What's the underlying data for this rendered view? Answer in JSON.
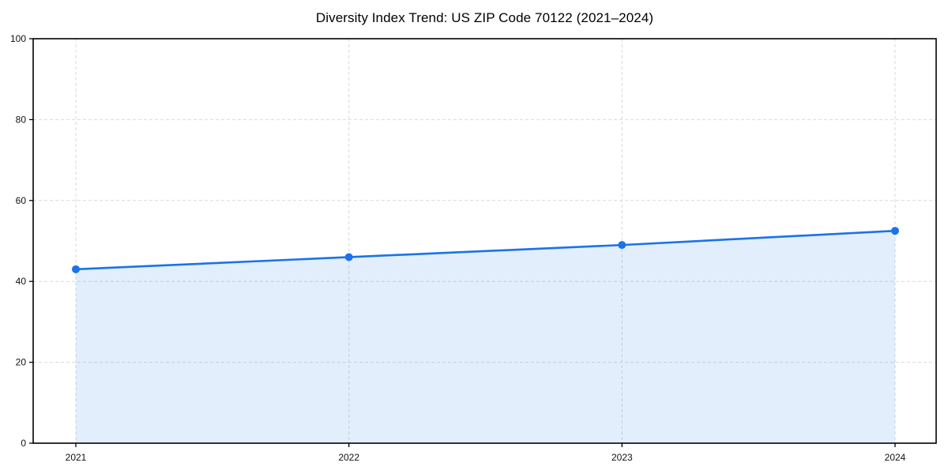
{
  "page": {
    "title": "Diversity Index Trend: US ZIP Code 70122 (2021–2024)"
  },
  "chart_data": {
    "type": "line",
    "title": "Diversity Index Trend: US ZIP Code 70122 (2021–2024)",
    "categories": [
      "2021",
      "2022",
      "2023",
      "2024"
    ],
    "series": [
      {
        "name": "Diversity Index",
        "values": [
          43,
          46,
          49,
          52.5
        ]
      }
    ],
    "xlabel": "",
    "ylabel": "",
    "ylim": [
      0,
      100
    ],
    "yticks": [
      0,
      20,
      40,
      60,
      80,
      100
    ],
    "grid": true,
    "grid_style": "dashed",
    "legend_position": "none",
    "area_fill": true,
    "marker": "circle",
    "colors": {
      "line": "#1a73e8",
      "marker": "#1a73e8",
      "area": "#1a73e8",
      "area_opacity": "0.12",
      "grid": "#d9d9d9",
      "axis": "#000000",
      "tick_text": "#111111"
    }
  }
}
